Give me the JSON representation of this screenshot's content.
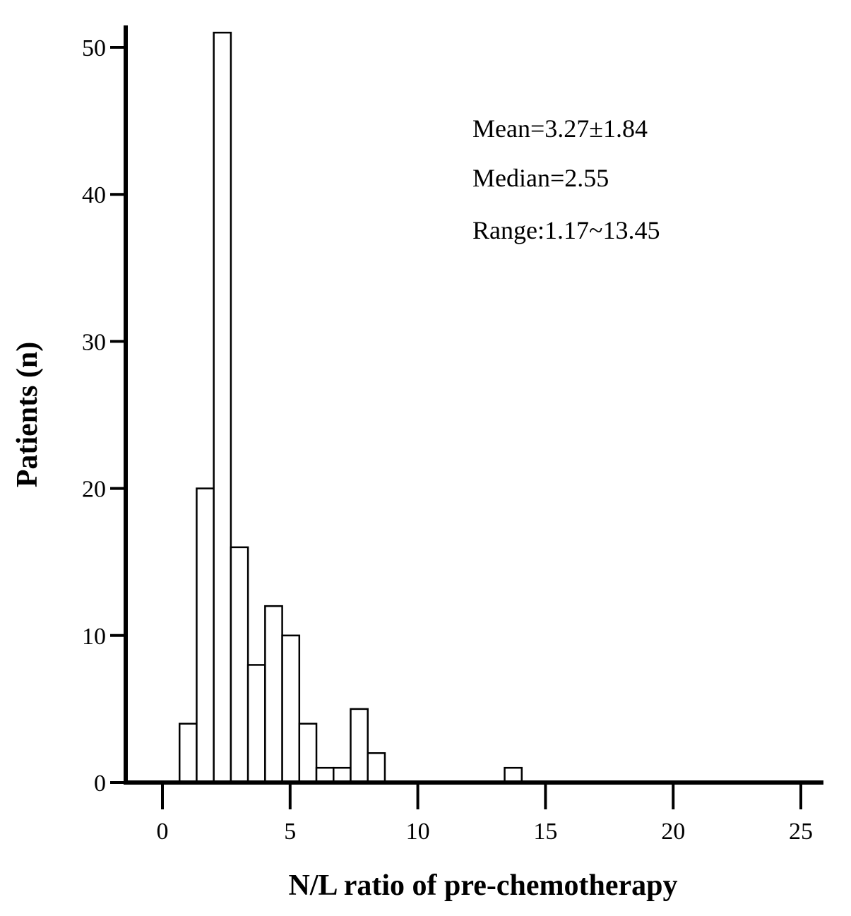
{
  "chart_data": {
    "type": "bar",
    "title": "",
    "xlabel": "N/L ratio of pre-chemotherapy",
    "ylabel": "Patients (n)",
    "xlim": [
      -1.5,
      26
    ],
    "ylim": [
      0,
      52
    ],
    "x_ticks": [
      0,
      5,
      10,
      15,
      20,
      25
    ],
    "y_ticks": [
      0,
      10,
      20,
      30,
      40,
      50
    ],
    "x_tick_labels": [
      "0",
      "5",
      "10",
      "15",
      "20",
      "25"
    ],
    "y_tick_labels": [
      "0",
      "10",
      "20",
      "30",
      "40",
      "50"
    ],
    "bin_width": 0.67,
    "bins": [
      {
        "start": 0.67,
        "count": 4
      },
      {
        "start": 1.34,
        "count": 20
      },
      {
        "start": 2.01,
        "count": 51
      },
      {
        "start": 2.68,
        "count": 16
      },
      {
        "start": 3.35,
        "count": 8
      },
      {
        "start": 4.02,
        "count": 12
      },
      {
        "start": 4.69,
        "count": 10
      },
      {
        "start": 5.36,
        "count": 4
      },
      {
        "start": 6.03,
        "count": 1
      },
      {
        "start": 6.7,
        "count": 1
      },
      {
        "start": 7.37,
        "count": 5
      },
      {
        "start": 8.04,
        "count": 2
      },
      {
        "start": 13.4,
        "count": 1
      }
    ],
    "grid": false,
    "bar_fill": "#ffffff",
    "bar_stroke": "#000000",
    "annotations": [
      "Mean=3.27±1.84",
      "Median=2.55",
      "Range:1.17~13.45"
    ]
  }
}
